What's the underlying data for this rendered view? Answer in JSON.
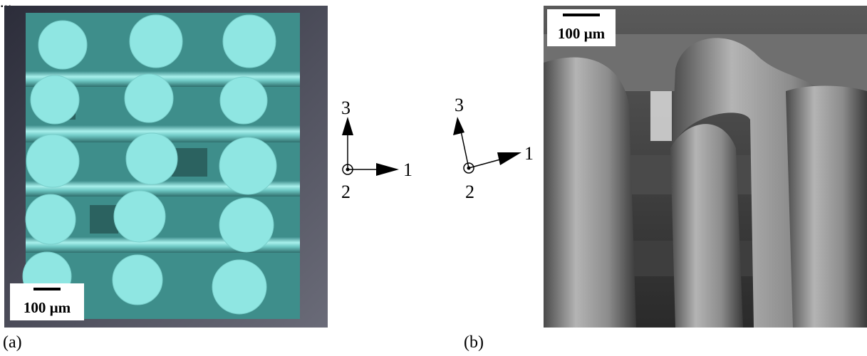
{
  "header": {
    "partial_text": "..."
  },
  "panel_a": {
    "caption": "(a)",
    "scale_label": "100 µm",
    "colors": {
      "background": "#4f5060",
      "struts": "#7fd9d6",
      "strut_ends": "#8fe6e2"
    }
  },
  "panel_b": {
    "caption": "(b)",
    "scale_label": "100 µm",
    "colors": {
      "background": "#3a3a3a",
      "fibers": "#9a9a9a"
    }
  },
  "axes_a": {
    "label_1": "1",
    "label_2": "2",
    "label_3": "3"
  },
  "axes_b": {
    "label_1": "1",
    "label_2": "2",
    "label_3": "3"
  }
}
